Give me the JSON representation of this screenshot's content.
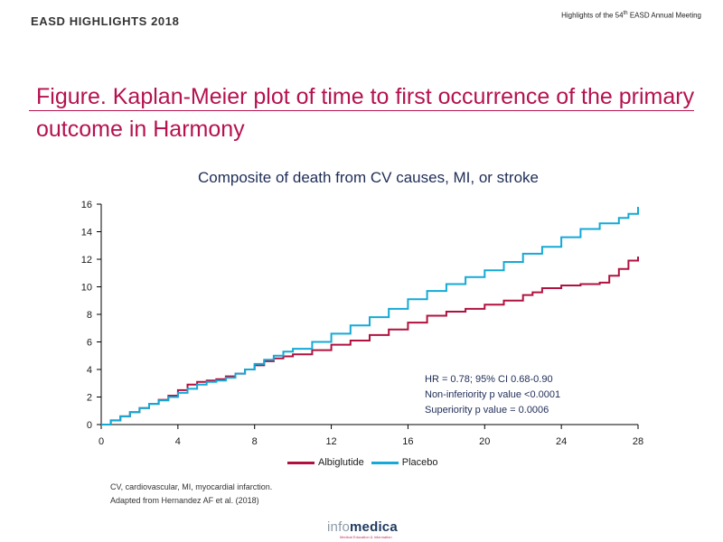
{
  "header": {
    "left": "EASD HIGHLIGHTS 2018",
    "right_prefix": "Highlights of the 54",
    "right_sup": "th",
    "right_suffix": " EASD Annual Meeting"
  },
  "slide_title": "Figure. Kaplan-Meier plot of time to first occurrence of the primary outcome in Harmony",
  "colors": {
    "title": "#b5124f",
    "albiglutide": "#b0123f",
    "placebo": "#14a9d6",
    "axis": "#000000"
  },
  "chart_data": {
    "type": "line",
    "title": "Composite of death from CV causes, MI, or stroke",
    "xlabel": "",
    "ylabel": "",
    "xlim": [
      0,
      28
    ],
    "ylim": [
      0,
      16
    ],
    "x_ticks": [
      0,
      4,
      8,
      12,
      16,
      20,
      24,
      28
    ],
    "y_ticks": [
      0,
      2,
      4,
      6,
      8,
      10,
      12,
      14,
      16
    ],
    "grid": false,
    "legend_position": "bottom",
    "series": [
      {
        "name": "Albiglutide",
        "color": "#b0123f",
        "x": [
          0,
          0.5,
          1,
          1.5,
          2,
          2.5,
          3,
          3.5,
          4,
          4.5,
          5,
          5.5,
          6,
          6.5,
          7,
          7.5,
          8,
          8.5,
          9,
          9.5,
          10,
          11,
          12,
          13,
          14,
          15,
          16,
          17,
          18,
          19,
          20,
          21,
          22,
          22.5,
          23,
          24,
          25,
          26,
          26.5,
          27,
          27.5,
          28
        ],
        "y": [
          0,
          0.3,
          0.6,
          0.9,
          1.2,
          1.5,
          1.8,
          2.1,
          2.5,
          2.9,
          3.1,
          3.2,
          3.3,
          3.5,
          3.7,
          4.0,
          4.3,
          4.6,
          4.8,
          4.95,
          5.1,
          5.4,
          5.8,
          6.1,
          6.5,
          6.9,
          7.4,
          7.9,
          8.2,
          8.4,
          8.7,
          9.0,
          9.4,
          9.6,
          9.9,
          10.1,
          10.2,
          10.3,
          10.8,
          11.3,
          11.9,
          12.2
        ]
      },
      {
        "name": "Placebo",
        "color": "#14a9d6",
        "x": [
          0,
          0.5,
          1,
          1.5,
          2,
          2.5,
          3,
          3.5,
          4,
          4.5,
          5,
          5.5,
          6,
          6.5,
          7,
          7.5,
          8,
          8.5,
          9,
          9.5,
          10,
          11,
          12,
          13,
          14,
          15,
          16,
          17,
          18,
          19,
          20,
          21,
          22,
          23,
          24,
          25,
          26,
          27,
          27.5,
          28
        ],
        "y": [
          0,
          0.3,
          0.6,
          0.9,
          1.2,
          1.5,
          1.75,
          2.0,
          2.3,
          2.6,
          2.9,
          3.1,
          3.2,
          3.4,
          3.7,
          4.0,
          4.4,
          4.7,
          5.0,
          5.3,
          5.5,
          6.0,
          6.6,
          7.2,
          7.8,
          8.4,
          9.1,
          9.7,
          10.2,
          10.7,
          11.2,
          11.8,
          12.4,
          12.9,
          13.6,
          14.2,
          14.6,
          15.0,
          15.3,
          15.8
        ]
      }
    ],
    "annotations": [
      "HR = 0.78; 95% CI 0.68-0.90",
      "Non-inferiority p value <0.0001",
      "Superiority p value = 0.0006"
    ]
  },
  "footnotes": [
    "CV, cardiovascular, MI, myocardial infarction.",
    "Adapted from Hernandez AF et al. (2018)"
  ],
  "logo": {
    "part1": "info",
    "part2": "medica",
    "tagline": "Medical Education & Information"
  }
}
